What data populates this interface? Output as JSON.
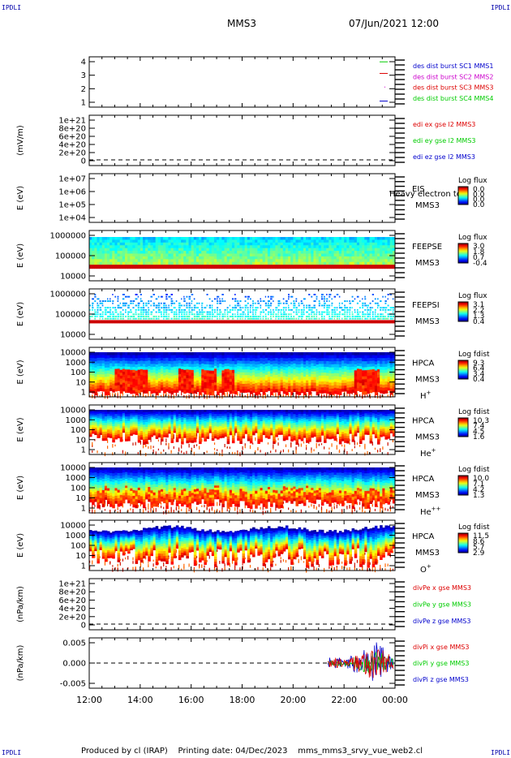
{
  "header": {
    "corner_tl": "IPDLI",
    "corner_tr": "IPDLI",
    "corner_bl": "IPDLI",
    "corner_br": "IPDLI",
    "spacecraft": "MMS3",
    "datetime": "07/Jun/2021 12:00"
  },
  "footer": {
    "text": "Produced by cl (IRAP)    Printing date: 04/Dec/2023    mms_mms3_srvy_vue_web2.cl"
  },
  "colors": {
    "red": "#dd0000",
    "green": "#00cc00",
    "blue": "#0000cc",
    "magenta": "#cc00cc"
  },
  "chart_data": {
    "type": "heatmap",
    "x_ticks": [
      "12:00",
      "14:00",
      "16:00",
      "18:00",
      "20:00",
      "22:00",
      "00:00"
    ],
    "panels": [
      {
        "id": "burst",
        "yticks": [
          "4",
          "3",
          "2",
          "1"
        ],
        "legend": [
          {
            "text": "des dist burst SC1 MMS1",
            "color": "#0000cc"
          },
          {
            "text": "des dist burst SC2 MMS2",
            "color": "#cc00cc"
          },
          {
            "text": "des dist burst SC3 MMS3",
            "color": "#dd0000"
          },
          {
            "text": "des dist burst SC4 MMS4",
            "color": "#00cc00"
          }
        ]
      },
      {
        "id": "edi",
        "ylabel": "(mV/m)",
        "yticks": [
          "1e+21",
          "8e+20",
          "6e+20",
          "4e+20",
          "2e+20",
          "0"
        ],
        "legend": [
          {
            "text": "edi ex gse l2 MMS3",
            "color": "#dd0000"
          },
          {
            "text": "edi ey gse l2 MMS3",
            "color": "#00cc00"
          },
          {
            "text": "edi ez gse l2 MMS3",
            "color": "#0000cc"
          }
        ]
      },
      {
        "id": "eis",
        "ylabel": "E (eV)",
        "yticks": [
          "1e+07",
          "1e+06",
          "1e+05",
          "1e+04"
        ],
        "instrument": "EIS",
        "instrument_extra": "Heavy electron to",
        "sc": "MMS3",
        "cbar_title": "Log flux",
        "cbar_ticks": [
          "0.0",
          "0.0",
          "0.0",
          "0.0"
        ]
      },
      {
        "id": "feepse",
        "ylabel": "E (eV)",
        "yticks": [
          "1000000",
          "100000",
          "10000"
        ],
        "instrument": "FEEPSE",
        "sc": "MMS3",
        "cbar_title": "Log flux",
        "cbar_ticks": [
          "3.0",
          "1.8",
          "0.7",
          "-0.4"
        ]
      },
      {
        "id": "feepsi",
        "ylabel": "E (eV)",
        "yticks": [
          "1000000",
          "100000",
          "10000"
        ],
        "instrument": "FEEPSI",
        "sc": "MMS3",
        "cbar_title": "Log flux",
        "cbar_ticks": [
          "3.1",
          "2.2",
          "1.3",
          "0.4"
        ]
      },
      {
        "id": "hpca_h",
        "ylabel": "E (eV)",
        "yticks": [
          "10000",
          "1000",
          "100",
          "10",
          "1"
        ],
        "instrument": "HPCA",
        "sc": "MMS3",
        "species": "H",
        "species_sup": "+",
        "cbar_title": "Log fdist",
        "cbar_ticks": [
          "9.3",
          "6.4",
          "3.4",
          "0.4"
        ]
      },
      {
        "id": "hpca_he",
        "ylabel": "E (eV)",
        "yticks": [
          "10000",
          "1000",
          "100",
          "10",
          "1"
        ],
        "instrument": "HPCA",
        "sc": "MMS3",
        "species": "He",
        "species_sup": "+",
        "cbar_title": "Log fdist",
        "cbar_ticks": [
          "10.3",
          "7.4",
          "4.5",
          "1.6"
        ]
      },
      {
        "id": "hpca_hepp",
        "ylabel": "E (eV)",
        "yticks": [
          "10000",
          "1000",
          "100",
          "10",
          "1"
        ],
        "instrument": "HPCA",
        "sc": "MMS3",
        "species": "He",
        "species_sup": "++",
        "cbar_title": "Log fdist",
        "cbar_ticks": [
          "10.0",
          "7.1",
          "4.2",
          "1.3"
        ]
      },
      {
        "id": "hpca_o",
        "ylabel": "E (eV)",
        "yticks": [
          "10000",
          "1000",
          "100",
          "10",
          "1"
        ],
        "instrument": "HPCA",
        "sc": "MMS3",
        "species": "O",
        "species_sup": "+",
        "cbar_title": "Log fdist",
        "cbar_ticks": [
          "11.5",
          "8.6",
          "5.7",
          "2.9"
        ]
      },
      {
        "id": "divpe",
        "ylabel": "(nPa/km)",
        "yticks": [
          "1e+21",
          "8e+20",
          "6e+20",
          "4e+20",
          "2e+20",
          "0"
        ],
        "legend": [
          {
            "text": "divPe x gse MMS3",
            "color": "#dd0000"
          },
          {
            "text": "divPe y gse MMS3",
            "color": "#00cc00"
          },
          {
            "text": "divPe z gse MMS3",
            "color": "#0000cc"
          }
        ]
      },
      {
        "id": "divpi",
        "ylabel": "(nPa/km)",
        "yticks": [
          "0.005",
          "0.000",
          "-0.005"
        ],
        "legend": [
          {
            "text": "divPi x gse MMS3",
            "color": "#dd0000"
          },
          {
            "text": "divPi y gse MMS3",
            "color": "#00cc00"
          },
          {
            "text": "divPi z gse MMS3",
            "color": "#0000cc"
          }
        ]
      }
    ]
  }
}
